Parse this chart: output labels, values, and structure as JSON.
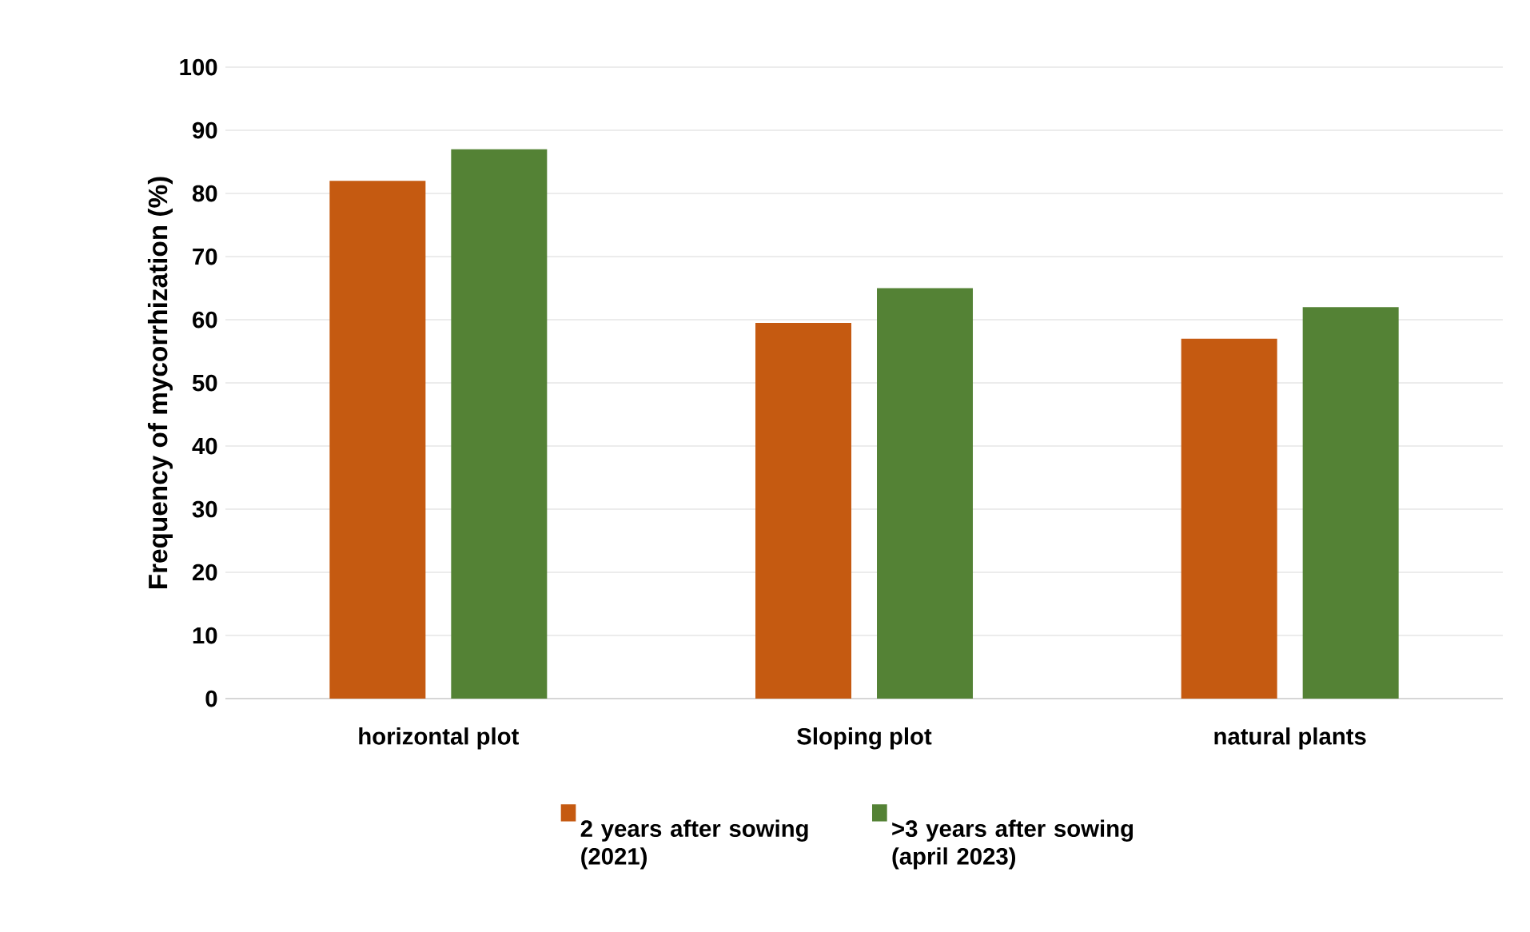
{
  "chart_data": {
    "type": "bar",
    "ylabel": "Frequency of mycorrhization  (%)",
    "categories": [
      "horizontal plot",
      "Sloping plot",
      "natural plants"
    ],
    "series": [
      {
        "name": "2 years after sowing (2021)",
        "color": "#c55a11",
        "values": [
          82,
          59.5,
          57
        ]
      },
      {
        "name": ">3 years after sowing (april 2023)",
        "color": "#548235",
        "values": [
          87,
          65,
          62
        ]
      }
    ],
    "ylim": [
      0,
      100
    ],
    "yticks": [
      0,
      10,
      20,
      30,
      40,
      50,
      60,
      70,
      80,
      90,
      100
    ],
    "grid": "y",
    "legend": "bottom"
  }
}
